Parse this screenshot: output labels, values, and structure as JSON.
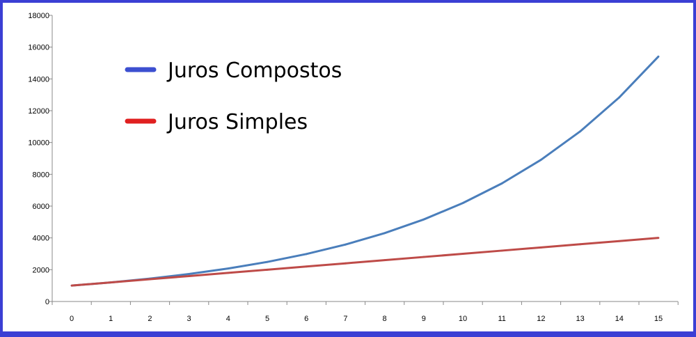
{
  "chart_data": {
    "type": "line",
    "title": "",
    "xlabel": "",
    "ylabel": "",
    "x": [
      0,
      1,
      2,
      3,
      4,
      5,
      6,
      7,
      8,
      9,
      10,
      11,
      12,
      13,
      14,
      15
    ],
    "ylim": [
      0,
      18000
    ],
    "yticks": [
      0,
      2000,
      4000,
      6000,
      8000,
      10000,
      12000,
      14000,
      16000,
      18000
    ],
    "grid": false,
    "legend_position": "top-left",
    "series": [
      {
        "name": "Juros Compostos",
        "color": "#4a7ebb",
        "legend_color": "#3c4fd0",
        "values": [
          1000,
          1200,
          1440,
          1728,
          2074,
          2488,
          2986,
          3583,
          4300,
          5160,
          6192,
          7430,
          8916,
          10699,
          12839,
          15407
        ]
      },
      {
        "name": "Juros Simples",
        "color": "#be4b48",
        "legend_color": "#e02020",
        "values": [
          1000,
          1200,
          1400,
          1600,
          1800,
          2000,
          2200,
          2400,
          2600,
          2800,
          3000,
          3200,
          3400,
          3600,
          3800,
          4000
        ]
      }
    ]
  }
}
